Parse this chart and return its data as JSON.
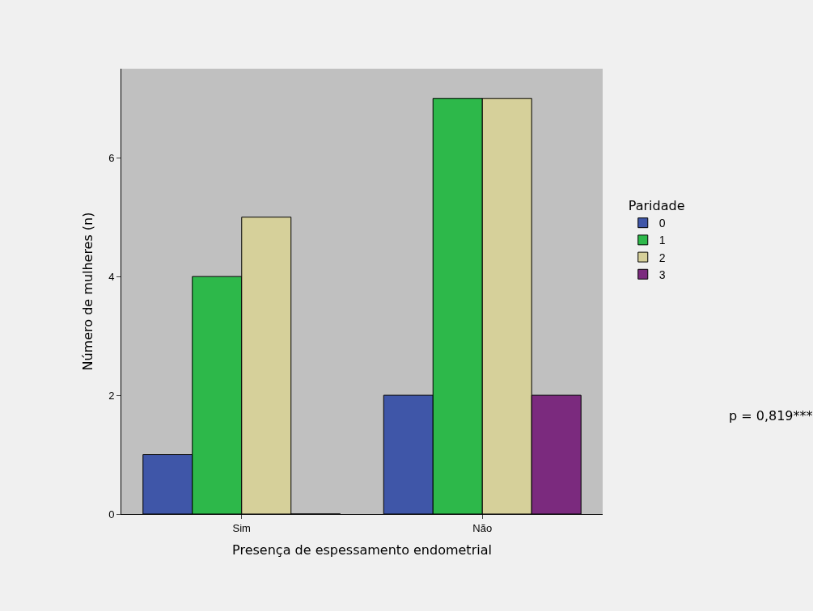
{
  "chart_data": {
    "type": "bar",
    "xlabel": "Presença de espessamento endometrial",
    "ylabel": "Número de mulheres (n)",
    "legend_title": "Paridade",
    "categories": [
      "Sim",
      "Não"
    ],
    "series": [
      {
        "name": "0",
        "color": "#3f56a8",
        "values": [
          1,
          2
        ]
      },
      {
        "name": "1",
        "color": "#2db84a",
        "values": [
          4,
          7
        ]
      },
      {
        "name": "2",
        "color": "#d6d09a",
        "values": [
          5,
          7
        ]
      },
      {
        "name": "3",
        "color": "#7b2a7e",
        "values": [
          0,
          2
        ]
      }
    ],
    "ylim": [
      0,
      7.5
    ],
    "yticks": [
      0,
      2,
      4,
      6
    ],
    "grid": false,
    "legend": "right",
    "annotations": [
      "p = 0,819***"
    ]
  }
}
